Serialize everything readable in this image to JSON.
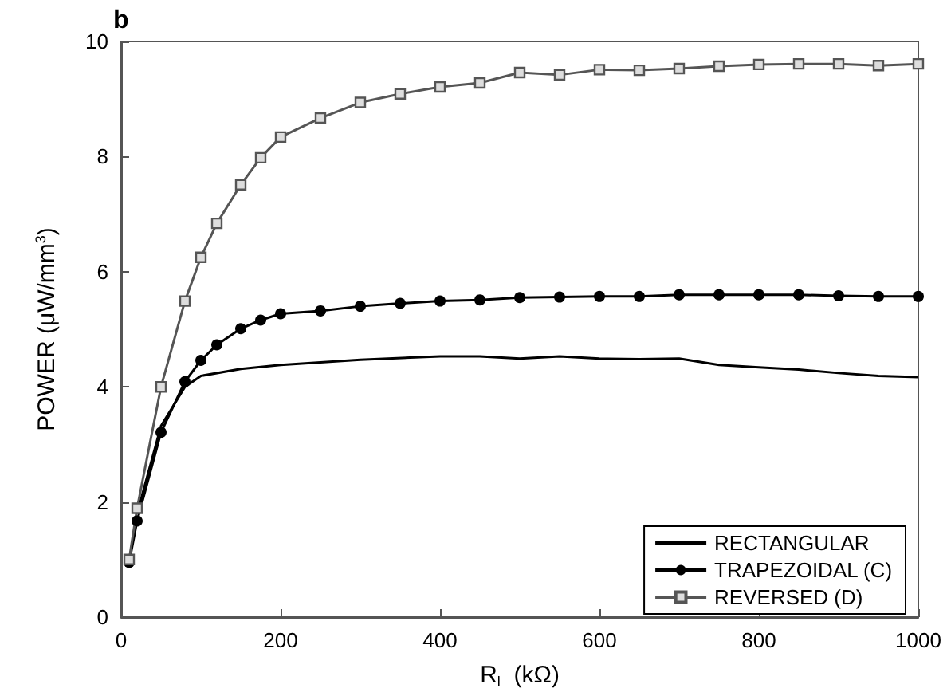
{
  "chart_data": {
    "type": "line",
    "title": "b",
    "xlabel": "R$_{l}$  (kΩ)",
    "ylabel": "POWER (μW/mm$^{3}$)",
    "xlim": [
      0,
      1000
    ],
    "xticks": [
      0,
      200,
      400,
      600,
      800,
      1000
    ],
    "ylim": [
      0,
      10
    ],
    "yticks": [
      0,
      2,
      4,
      6,
      8,
      10
    ],
    "grid": false,
    "legend": "bottom right",
    "line_style": "solid",
    "series": [
      {
        "name": "RECTANGULAR",
        "color": "#000000",
        "marker": "none",
        "x": [
          20,
          50,
          80,
          100,
          150,
          200,
          300,
          400,
          450,
          500,
          550,
          600,
          650,
          700,
          750,
          800,
          850,
          900,
          950,
          1000
        ],
        "values": [
          1.8,
          3.32,
          4.0,
          4.19,
          4.31,
          4.38,
          4.47,
          4.53,
          4.53,
          4.49,
          4.53,
          4.49,
          4.48,
          4.49,
          4.38,
          4.34,
          4.3,
          4.24,
          4.19,
          4.17
        ]
      },
      {
        "name": "TRAPEZOIDAL (C)",
        "color": "#000000",
        "marker": "circle",
        "x": [
          10,
          20,
          50,
          80,
          100,
          120,
          150,
          175,
          200,
          250,
          300,
          350,
          400,
          450,
          500,
          550,
          600,
          650,
          700,
          750,
          800,
          850,
          900,
          950,
          1000
        ],
        "values": [
          0.95,
          1.67,
          3.21,
          4.09,
          4.46,
          4.73,
          5.01,
          5.16,
          5.27,
          5.32,
          5.4,
          5.45,
          5.49,
          5.51,
          5.55,
          5.56,
          5.57,
          5.57,
          5.6,
          5.6,
          5.6,
          5.6,
          5.58,
          5.57,
          5.57
        ]
      },
      {
        "name": "REVERSED (D)",
        "color": "#555555",
        "marker": "square",
        "x": [
          10,
          20,
          50,
          80,
          100,
          120,
          150,
          175,
          200,
          250,
          300,
          350,
          400,
          450,
          500,
          550,
          600,
          650,
          700,
          750,
          800,
          850,
          900,
          950,
          1000
        ],
        "values": [
          1.0,
          1.89,
          4.0,
          5.49,
          6.25,
          6.84,
          7.51,
          7.98,
          8.34,
          8.67,
          8.94,
          9.09,
          9.21,
          9.28,
          9.46,
          9.42,
          9.51,
          9.5,
          9.53,
          9.57,
          9.6,
          9.61,
          9.61,
          9.58,
          9.61
        ]
      }
    ]
  }
}
